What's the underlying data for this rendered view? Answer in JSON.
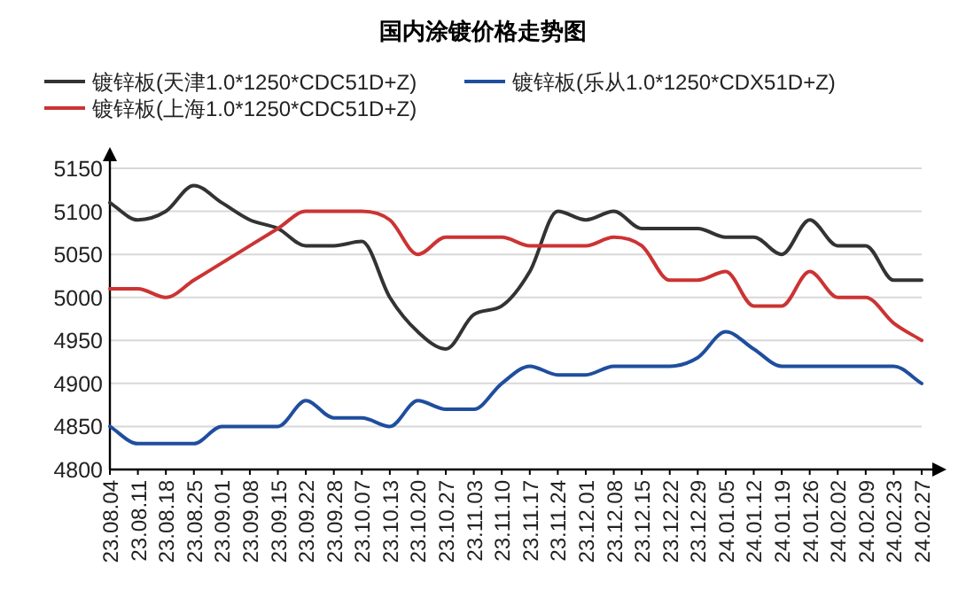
{
  "chart_data": {
    "type": "line",
    "title": "国内涂镀价格走势图",
    "categories": [
      "23.08.04",
      "23.08.11",
      "23.08.18",
      "23.08.25",
      "23.09.01",
      "23.09.08",
      "23.09.15",
      "23.09.22",
      "23.09.28",
      "23.10.07",
      "23.10.13",
      "23.10.20",
      "23.10.27",
      "23.11.03",
      "23.11.10",
      "23.11.17",
      "23.11.24",
      "23.12.01",
      "23.12.08",
      "23.12.15",
      "23.12.22",
      "23.12.29",
      "24.01.05",
      "24.01.12",
      "24.01.19",
      "24.01.26",
      "24.02.02",
      "24.02.09",
      "24.02.23",
      "24.02.27"
    ],
    "series": [
      {
        "name": "镀锌板(天津1.0*1250*CDC51D+Z)",
        "color": "#333333",
        "values": [
          5110,
          5090,
          5100,
          5130,
          5110,
          5090,
          5080,
          5060,
          5060,
          5065,
          5000,
          4960,
          4940,
          4980,
          4990,
          5030,
          5100,
          5090,
          5100,
          5080,
          5080,
          5080,
          5070,
          5070,
          5050,
          5090,
          5060,
          5060,
          5020,
          5020
        ]
      },
      {
        "name": "镀锌板(乐从1.0*1250*CDX51D+Z)",
        "color": "#1f4e9e",
        "values": [
          4850,
          4830,
          4830,
          4830,
          4850,
          4850,
          4850,
          4880,
          4860,
          4860,
          4850,
          4880,
          4870,
          4870,
          4900,
          4920,
          4910,
          4910,
          4920,
          4920,
          4920,
          4930,
          4960,
          4940,
          4920,
          4920,
          4920,
          4920,
          4920,
          4900
        ]
      },
      {
        "name": "镀锌板(上海1.0*1250*CDC51D+Z)",
        "color": "#cc3333",
        "values": [
          5010,
          5010,
          5000,
          5020,
          5040,
          5060,
          5080,
          5100,
          5100,
          5100,
          5090,
          5050,
          5070,
          5070,
          5070,
          5060,
          5060,
          5060,
          5070,
          5060,
          5020,
          5020,
          5030,
          4990,
          4990,
          5030,
          5000,
          5000,
          4970,
          4950
        ]
      }
    ],
    "ylim": [
      4800,
      5150
    ],
    "yticks": [
      4800,
      4850,
      4900,
      4950,
      5000,
      5050,
      5100,
      5150
    ],
    "grid": "y",
    "legend": "top",
    "marker": "none",
    "line_style": "solid"
  }
}
